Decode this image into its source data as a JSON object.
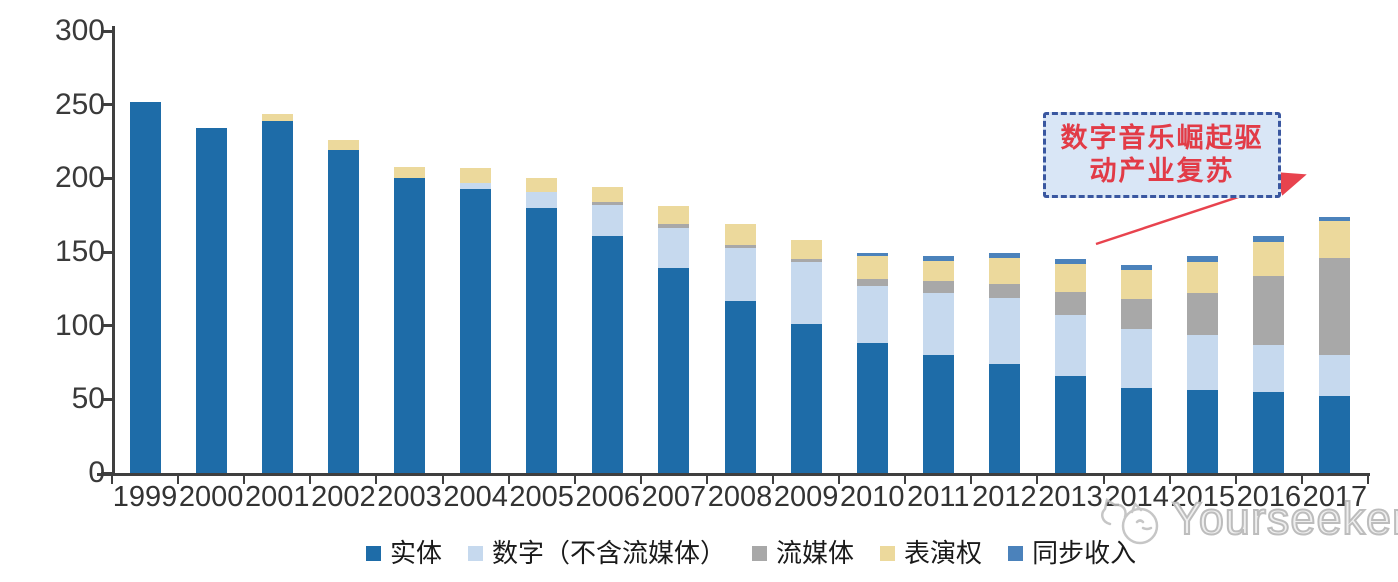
{
  "chart_data": {
    "type": "bar",
    "stacked": true,
    "title": "",
    "xlabel": "",
    "ylabel": "",
    "ylim": [
      0,
      300
    ],
    "ytick_interval": 50,
    "yticks": [
      "0",
      "50",
      "100",
      "150",
      "200",
      "250",
      "300"
    ],
    "grid": false,
    "legend_position": "bottom",
    "categories": [
      "1999",
      "2000",
      "2001",
      "2002",
      "2003",
      "2004",
      "2005",
      "2006",
      "2007",
      "2008",
      "2009",
      "2010",
      "2011",
      "2012",
      "2013",
      "2014",
      "2015",
      "2016",
      "2017"
    ],
    "series": [
      {
        "name": "实体",
        "color": "#1e6ca8",
        "values": [
          252,
          234,
          239,
          219,
          200,
          193,
          180,
          161,
          139,
          117,
          101,
          88,
          80,
          74,
          66,
          58,
          56,
          55,
          52
        ]
      },
      {
        "name": "数字（不含流媒体）",
        "color": "#c6d9ee",
        "values": [
          0,
          0,
          0,
          0,
          0,
          4,
          11,
          21,
          27,
          36,
          42,
          39,
          42,
          45,
          41,
          40,
          38,
          32,
          28
        ]
      },
      {
        "name": "流媒体",
        "color": "#a8a8a8",
        "values": [
          0,
          0,
          0,
          0,
          0,
          0,
          0,
          2,
          3,
          2,
          2,
          5,
          8,
          9,
          16,
          20,
          28,
          47,
          66
        ]
      },
      {
        "name": "表演权",
        "color": "#ecd99c",
        "values": [
          0,
          0,
          5,
          7,
          8,
          10,
          9,
          10,
          12,
          14,
          13,
          15,
          14,
          18,
          19,
          20,
          21,
          23,
          25
        ]
      },
      {
        "name": "同步收入",
        "color": "#4b82bb",
        "values": [
          0,
          0,
          0,
          0,
          0,
          0,
          0,
          0,
          0,
          0,
          0,
          2,
          3,
          3,
          3,
          3,
          4,
          4,
          3
        ]
      }
    ],
    "totals": [
      252,
      234,
      244,
      226,
      208,
      207,
      200,
      194,
      181,
      169,
      158,
      149,
      147,
      149,
      145,
      141,
      147,
      161,
      174
    ]
  },
  "annotation": {
    "line1": "数字音乐崛起驱",
    "line2": "动产业复苏",
    "full_text": "数字音乐崛起驱动产业复苏",
    "fill_color": "#d9e6f6",
    "border_color": "#3a57a0",
    "text_color": "#e23b47",
    "arrow_color": "#e8434e"
  },
  "watermark": {
    "label": "Yourseeker",
    "logo_icon": "yourseeker-cat-logo-icon",
    "color": "#bdbdbd"
  },
  "axis_color": "#3f3f3f"
}
